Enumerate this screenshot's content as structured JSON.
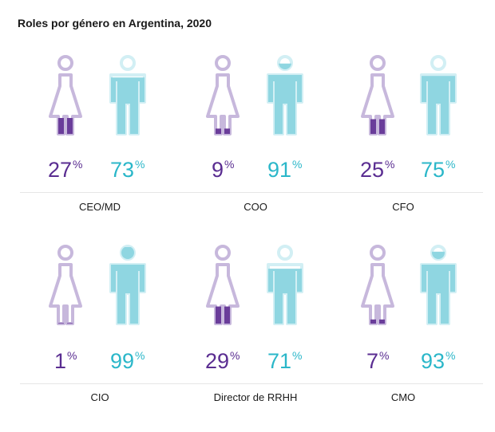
{
  "title": "Roles por género en Argentina, 2020",
  "colors": {
    "woman_fill": "#6a3d9a",
    "woman_outline": "#c7b8dc",
    "man_fill": "#8fd6e1",
    "man_outline": "#d2eff4"
  },
  "chart_data": {
    "type": "pictogram",
    "title": "Roles por género en Argentina, 2020",
    "series": [
      {
        "name": "Mujeres",
        "values": [
          27,
          9,
          25,
          1,
          29,
          7
        ]
      },
      {
        "name": "Hombres",
        "values": [
          73,
          91,
          75,
          99,
          71,
          93
        ]
      }
    ],
    "categories": [
      "CEO/MD",
      "COO",
      "CFO",
      "CIO",
      "Director de RRHH",
      "CMO"
    ],
    "unit": "%",
    "roles": [
      {
        "role": "CEO/MD",
        "women": "27",
        "men": "73",
        "pct_sign": "%"
      },
      {
        "role": "COO",
        "women": "9",
        "men": "91",
        "pct_sign": "%"
      },
      {
        "role": "CFO",
        "women": "25",
        "men": "75",
        "pct_sign": "%"
      },
      {
        "role": "CIO",
        "women": "1",
        "men": "99",
        "pct_sign": "%"
      },
      {
        "role": "Director de RRHH",
        "women": "29",
        "men": "71",
        "pct_sign": "%"
      },
      {
        "role": "CMO",
        "women": "7",
        "men": "93",
        "pct_sign": "%"
      }
    ]
  }
}
